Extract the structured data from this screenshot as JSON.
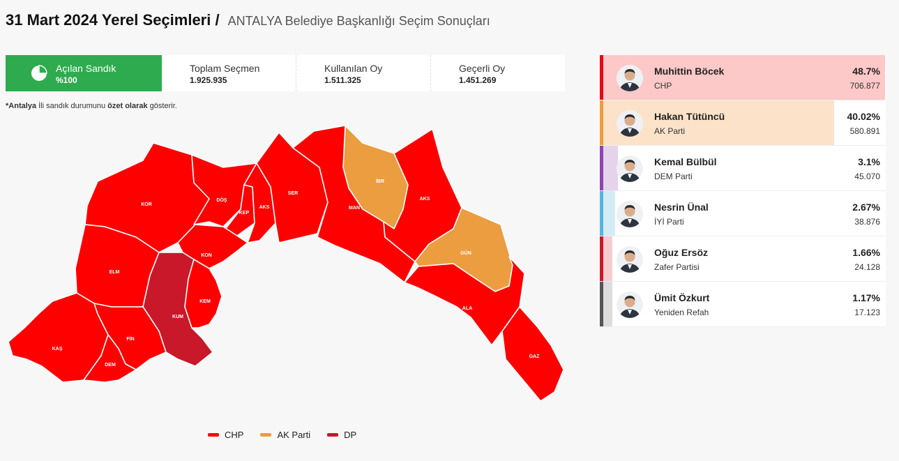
{
  "header": {
    "title": "31 Mart 2024 Yerel Seçimleri /",
    "subtitle": "ANTALYA Belediye Başkanlığı Seçim Sonuçları"
  },
  "stats": {
    "opened": {
      "label": "Açılan Sandık",
      "value": "%100"
    },
    "voters": {
      "label": "Toplam Seçmen",
      "value": "1.925.935"
    },
    "used": {
      "label": "Kullanılan Oy",
      "value": "1.511.325"
    },
    "valid": {
      "label": "Geçerli Oy",
      "value": "1.451.269"
    }
  },
  "note": {
    "prefix": "*Antalya",
    "mid": " İli sandık durumunu ",
    "bold": "özet olarak",
    "suffix": " gösterir."
  },
  "colors": {
    "CHP": "#ff0000",
    "AK Parti": "#eb9d40",
    "DP": "#c8182a"
  },
  "districts": [
    {
      "key": "kor",
      "label": "KOR",
      "party": "CHP"
    },
    {
      "key": "dos",
      "label": "DÖŞ",
      "party": "CHP"
    },
    {
      "key": "kep",
      "label": "KEP",
      "party": "CHP"
    },
    {
      "key": "aks1",
      "label": "AKS",
      "party": "CHP"
    },
    {
      "key": "ser",
      "label": "SER",
      "party": "CHP"
    },
    {
      "key": "ibr",
      "label": "İBR",
      "party": "AK Parti"
    },
    {
      "key": "man",
      "label": "MAN",
      "party": "CHP"
    },
    {
      "key": "aks2",
      "label": "AKS",
      "party": "CHP"
    },
    {
      "key": "gun",
      "label": "GÜN",
      "party": "AK Parti"
    },
    {
      "key": "ala",
      "label": "ALA",
      "party": "CHP"
    },
    {
      "key": "gaz",
      "label": "GAZ",
      "party": "CHP"
    },
    {
      "key": "kon",
      "label": "KON",
      "party": "CHP"
    },
    {
      "key": "elm",
      "label": "ELM",
      "party": "CHP"
    },
    {
      "key": "kum",
      "label": "KUM",
      "party": "DP"
    },
    {
      "key": "kem",
      "label": "KEM",
      "party": "CHP"
    },
    {
      "key": "kas",
      "label": "KAŞ",
      "party": "CHP"
    },
    {
      "key": "fin",
      "label": "FİN",
      "party": "CHP"
    },
    {
      "key": "dem",
      "label": "DEM",
      "party": "CHP"
    }
  ],
  "legend": [
    {
      "label": "CHP",
      "color": "#ff0000"
    },
    {
      "label": "AK Parti",
      "color": "#eb9d40"
    },
    {
      "label": "DP",
      "color": "#c8182a"
    }
  ],
  "candidates": [
    {
      "name": "Muhittin Böcek",
      "party": "CHP",
      "pct": "48.7%",
      "share": 48.7,
      "votes": "706.877",
      "color": "#e30a17",
      "tint": "#fcc8c8"
    },
    {
      "name": "Hakan Tütüncü",
      "party": "AK Parti",
      "pct": "40.02%",
      "share": 40.02,
      "votes": "580.891",
      "color": "#eb9d40",
      "tint": "#fbe2c8"
    },
    {
      "name": "Kemal Bülbül",
      "party": "DEM Parti",
      "pct": "3.1%",
      "share": 3.1,
      "votes": "45.070",
      "color": "#8e44ad",
      "tint": "#e4d3ea"
    },
    {
      "name": "Nesrin Ünal",
      "party": "İYİ Parti",
      "pct": "2.67%",
      "share": 2.67,
      "votes": "38.876",
      "color": "#5ab4dc",
      "tint": "#d4ecf6"
    },
    {
      "name": "Oğuz Ersöz",
      "party": "Zafer Partisi",
      "pct": "1.66%",
      "share": 1.66,
      "votes": "24.128",
      "color": "#c8182a",
      "tint": "#f5cdd1"
    },
    {
      "name": "Ümit Özkurt",
      "party": "Yeniden Refah",
      "pct": "1.17%",
      "share": 1.17,
      "votes": "17.123",
      "color": "#555555",
      "tint": "#dddddd"
    }
  ]
}
